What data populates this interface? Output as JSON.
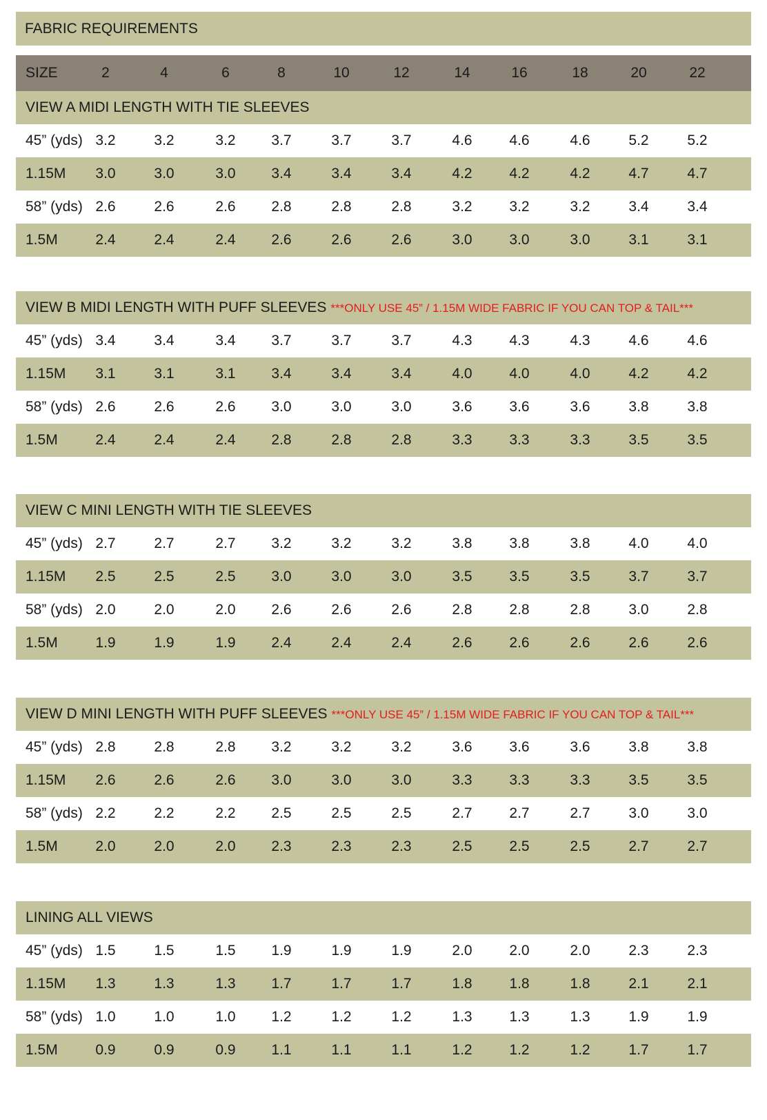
{
  "title": "FABRIC REQUIREMENTS",
  "size_header": {
    "label": "SIZE",
    "sizes": [
      "2",
      "4",
      "6",
      "8",
      "10",
      "12",
      "14",
      "16",
      "18",
      "20",
      "22"
    ]
  },
  "sections": [
    {
      "title": "VIEW A MIDI LENGTH WITH TIE SLEEVES",
      "warning": "",
      "rows": [
        {
          "label": "45” (yds)",
          "values": [
            "3.2",
            "3.2",
            "3.2",
            "3.7",
            "3.7",
            "3.7",
            "4.6",
            "4.6",
            "4.6",
            "5.2",
            "5.2"
          ]
        },
        {
          "label": "1.15M",
          "values": [
            "3.0",
            "3.0",
            "3.0",
            "3.4",
            "3.4",
            "3.4",
            "4.2",
            "4.2",
            "4.2",
            "4.7",
            "4.7"
          ]
        },
        {
          "label": "58” (yds)",
          "values": [
            "2.6",
            "2.6",
            "2.6",
            "2.8",
            "2.8",
            "2.8",
            "3.2",
            "3.2",
            "3.2",
            "3.4",
            "3.4"
          ]
        },
        {
          "label": "1.5M",
          "values": [
            "2.4",
            "2.4",
            "2.4",
            "2.6",
            "2.6",
            "2.6",
            "3.0",
            "3.0",
            "3.0",
            "3.1",
            "3.1"
          ]
        }
      ]
    },
    {
      "title": "VIEW B MIDI LENGTH WITH PUFF SLEEVES",
      "warning": "***ONLY USE 45” / 1.15M WIDE FABRIC IF YOU CAN TOP & TAIL***",
      "rows": [
        {
          "label": "45” (yds)",
          "values": [
            "3.4",
            "3.4",
            "3.4",
            "3.7",
            "3.7",
            "3.7",
            "4.3",
            "4.3",
            "4.3",
            "4.6",
            "4.6"
          ]
        },
        {
          "label": "1.15M",
          "values": [
            "3.1",
            "3.1",
            "3.1",
            "3.4",
            "3.4",
            "3.4",
            "4.0",
            "4.0",
            "4.0",
            "4.2",
            "4.2"
          ]
        },
        {
          "label": "58” (yds)",
          "values": [
            "2.6",
            "2.6",
            "2.6",
            "3.0",
            "3.0",
            "3.0",
            "3.6",
            "3.6",
            "3.6",
            "3.8",
            "3.8"
          ]
        },
        {
          "label": "1.5M",
          "values": [
            "2.4",
            "2.4",
            "2.4",
            "2.8",
            "2.8",
            "2.8",
            "3.3",
            "3.3",
            "3.3",
            "3.5",
            "3.5"
          ]
        }
      ]
    },
    {
      "title": "VIEW C MINI LENGTH WITH TIE SLEEVES",
      "warning": "",
      "rows": [
        {
          "label": "45” (yds)",
          "values": [
            "2.7",
            "2.7",
            "2.7",
            "3.2",
            "3.2",
            "3.2",
            "3.8",
            "3.8",
            "3.8",
            "4.0",
            "4.0"
          ]
        },
        {
          "label": "1.15M",
          "values": [
            "2.5",
            "2.5",
            "2.5",
            "3.0",
            "3.0",
            "3.0",
            "3.5",
            "3.5",
            "3.5",
            "3.7",
            "3.7"
          ]
        },
        {
          "label": "58” (yds)",
          "values": [
            "2.0",
            "2.0",
            "2.0",
            "2.6",
            "2.6",
            "2.6",
            "2.8",
            "2.8",
            "2.8",
            "3.0",
            "2.8"
          ]
        },
        {
          "label": "1.5M",
          "values": [
            "1.9",
            "1.9",
            "1.9",
            "2.4",
            "2.4",
            "2.4",
            "2.6",
            "2.6",
            "2.6",
            "2.6",
            "2.6"
          ]
        }
      ]
    },
    {
      "title": "VIEW D MINI LENGTH WITH PUFF SLEEVES",
      "warning": "***ONLY USE 45” / 1.15M WIDE FABRIC IF YOU CAN TOP & TAIL***",
      "rows": [
        {
          "label": "45” (yds)",
          "values": [
            "2.8",
            "2.8",
            "2.8",
            "3.2",
            "3.2",
            "3.2",
            "3.6",
            "3.6",
            "3.6",
            "3.8",
            "3.8"
          ]
        },
        {
          "label": "1.15M",
          "values": [
            "2.6",
            "2.6",
            "2.6",
            "3.0",
            "3.0",
            "3.0",
            "3.3",
            "3.3",
            "3.3",
            "3.5",
            "3.5"
          ]
        },
        {
          "label": "58” (yds)",
          "values": [
            "2.2",
            "2.2",
            "2.2",
            "2.5",
            "2.5",
            "2.5",
            "2.7",
            "2.7",
            "2.7",
            "3.0",
            "3.0"
          ]
        },
        {
          "label": "1.5M",
          "values": [
            "2.0",
            "2.0",
            "2.0",
            "2.3",
            "2.3",
            "2.3",
            "2.5",
            "2.5",
            "2.5",
            "2.7",
            "2.7"
          ]
        }
      ]
    },
    {
      "title": "LINING ALL VIEWS",
      "warning": "",
      "rows": [
        {
          "label": "45” (yds)",
          "values": [
            "1.5",
            "1.5",
            "1.5",
            "1.9",
            "1.9",
            "1.9",
            "2.0",
            "2.0",
            "2.0",
            "2.3",
            "2.3"
          ]
        },
        {
          "label": "1.15M",
          "values": [
            "1.3",
            "1.3",
            "1.3",
            "1.7",
            "1.7",
            "1.7",
            "1.8",
            "1.8",
            "1.8",
            "2.1",
            "2.1"
          ]
        },
        {
          "label": "58” (yds)",
          "values": [
            "1.0",
            "1.0",
            "1.0",
            "1.2",
            "1.2",
            "1.2",
            "1.3",
            "1.3",
            "1.3",
            "1.9",
            "1.9"
          ]
        },
        {
          "label": "1.5M",
          "values": [
            "0.9",
            "0.9",
            "0.9",
            "1.1",
            "1.1",
            "1.1",
            "1.2",
            "1.2",
            "1.2",
            "1.7",
            "1.7"
          ]
        }
      ]
    }
  ],
  "colors": {
    "band": "#c3c39d",
    "header": "#8a8375",
    "warning": "#e21d1d"
  }
}
